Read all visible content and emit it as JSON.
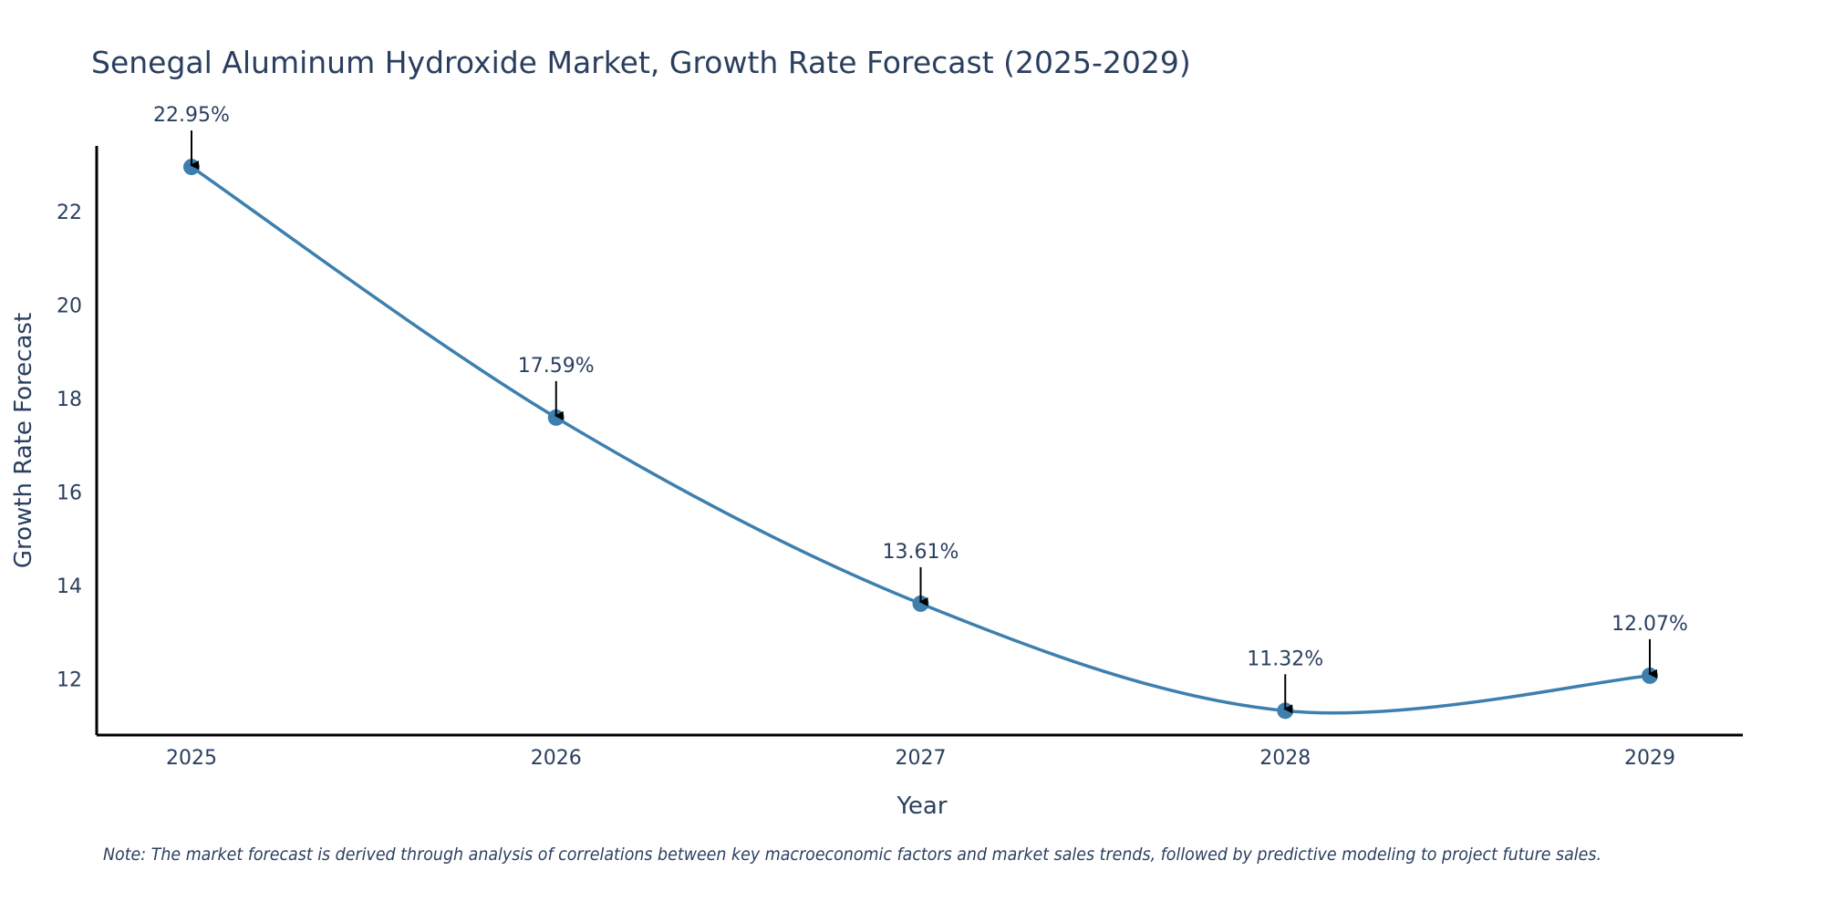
{
  "chart_data": {
    "type": "line",
    "title": "Senegal Aluminum Hydroxide Market, Growth Rate Forecast (2025-2029)",
    "xlabel": "Year",
    "ylabel": "Growth Rate Forecast",
    "categories": [
      "2025",
      "2026",
      "2027",
      "2028",
      "2029"
    ],
    "values": [
      22.95,
      17.59,
      13.61,
      11.32,
      12.07
    ],
    "data_labels": [
      "22.95%",
      "17.59%",
      "13.61%",
      "11.32%",
      "12.07%"
    ],
    "y_ticks": [
      12,
      14,
      16,
      18,
      20,
      22
    ],
    "ylim": [
      10.8,
      23.4
    ],
    "grid": false,
    "legend": "none",
    "line_color": "#3d7fae",
    "marker_color": "#3d7fae",
    "annotation_arrow_color": "#000000",
    "note": "Note: The market forecast is derived through analysis of correlations between key macroeconomic factors and market sales trends, followed by predictive modeling to project future sales."
  }
}
